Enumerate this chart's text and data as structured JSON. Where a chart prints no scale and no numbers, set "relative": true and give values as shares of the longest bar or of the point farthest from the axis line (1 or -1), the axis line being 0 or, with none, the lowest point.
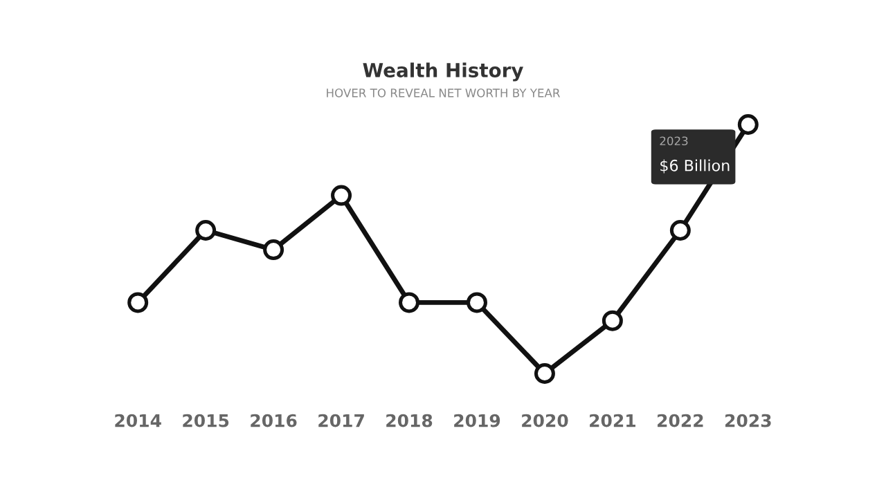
{
  "chart_data": {
    "type": "line",
    "title": "Wealth History",
    "subtitle": "HOVER TO REVEAL NET WORTH BY YEAR",
    "categories": [
      "2014",
      "2015",
      "2016",
      "2017",
      "2018",
      "2019",
      "2020",
      "2021",
      "2022",
      "2023"
    ],
    "relative": true,
    "series": [
      {
        "color": "#111111",
        "values": [
          0.285,
          0.575,
          0.497,
          0.715,
          0.285,
          0.285,
          0,
          0.212,
          0.575,
          1
        ]
      }
    ],
    "marker": "circle",
    "line_style": "solid",
    "grid": false,
    "annotations": [
      "2023",
      "$6 Billion"
    ]
  }
}
